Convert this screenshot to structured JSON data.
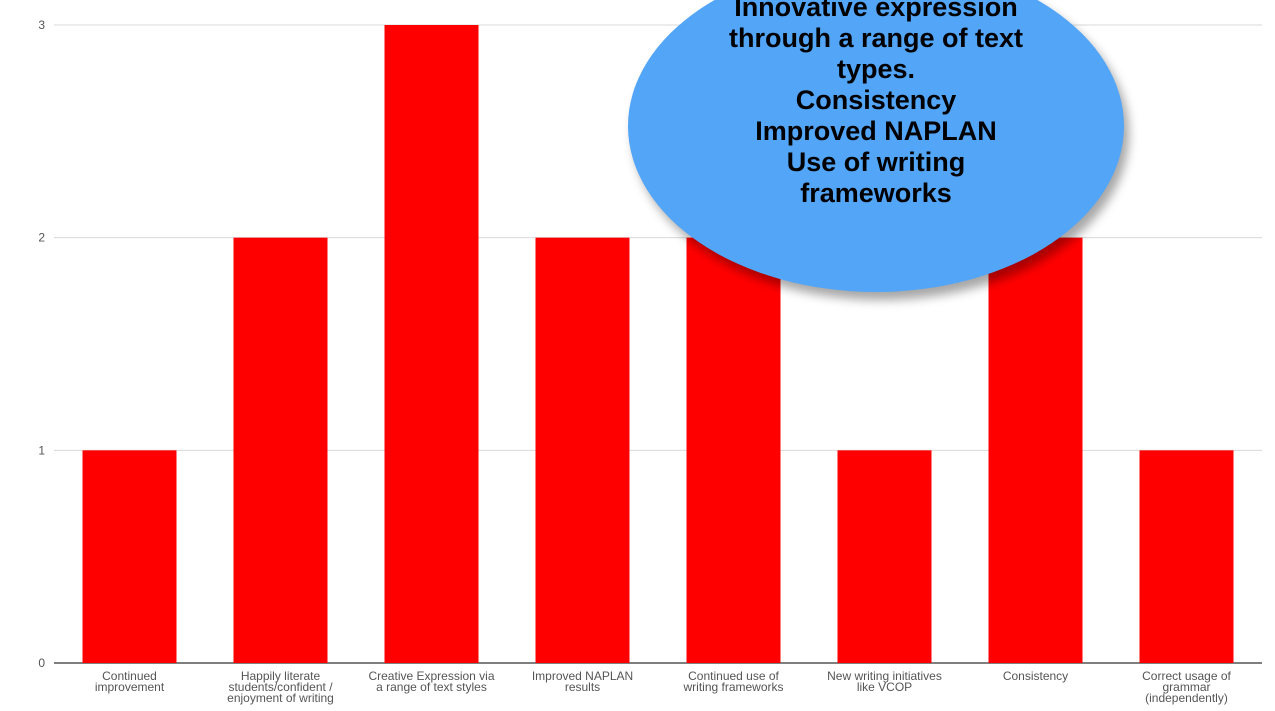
{
  "chart_data": {
    "type": "bar",
    "categories": [
      [
        "Continued",
        "improvement"
      ],
      [
        "Happily literate",
        "students/confident /",
        "enjoyment of writing"
      ],
      [
        "Creative Expression via",
        "a range of text styles"
      ],
      [
        "Improved NAPLAN",
        "results"
      ],
      [
        "Continued use of",
        "writing frameworks"
      ],
      [
        "New writing initiatives",
        "like VCOP"
      ],
      [
        "Consistency"
      ],
      [
        "Correct usage of",
        "grammar",
        "(independently)"
      ]
    ],
    "values": [
      1,
      2,
      3,
      2,
      2,
      1,
      2,
      1
    ],
    "ylim": [
      0,
      3
    ],
    "yticks": [
      "0",
      "1",
      "2",
      "3"
    ],
    "grid": true,
    "colors": {
      "bar": "#ff0000",
      "grid": "#d9d9d9",
      "axis": "#333333",
      "tick_text": "#555555"
    }
  },
  "callout": {
    "lines": [
      "Innovative expression",
      "through a range of text",
      "types.",
      "Consistency",
      "Improved NAPLAN",
      "Use of writing",
      "frameworks"
    ],
    "color": "#52a5f7"
  }
}
